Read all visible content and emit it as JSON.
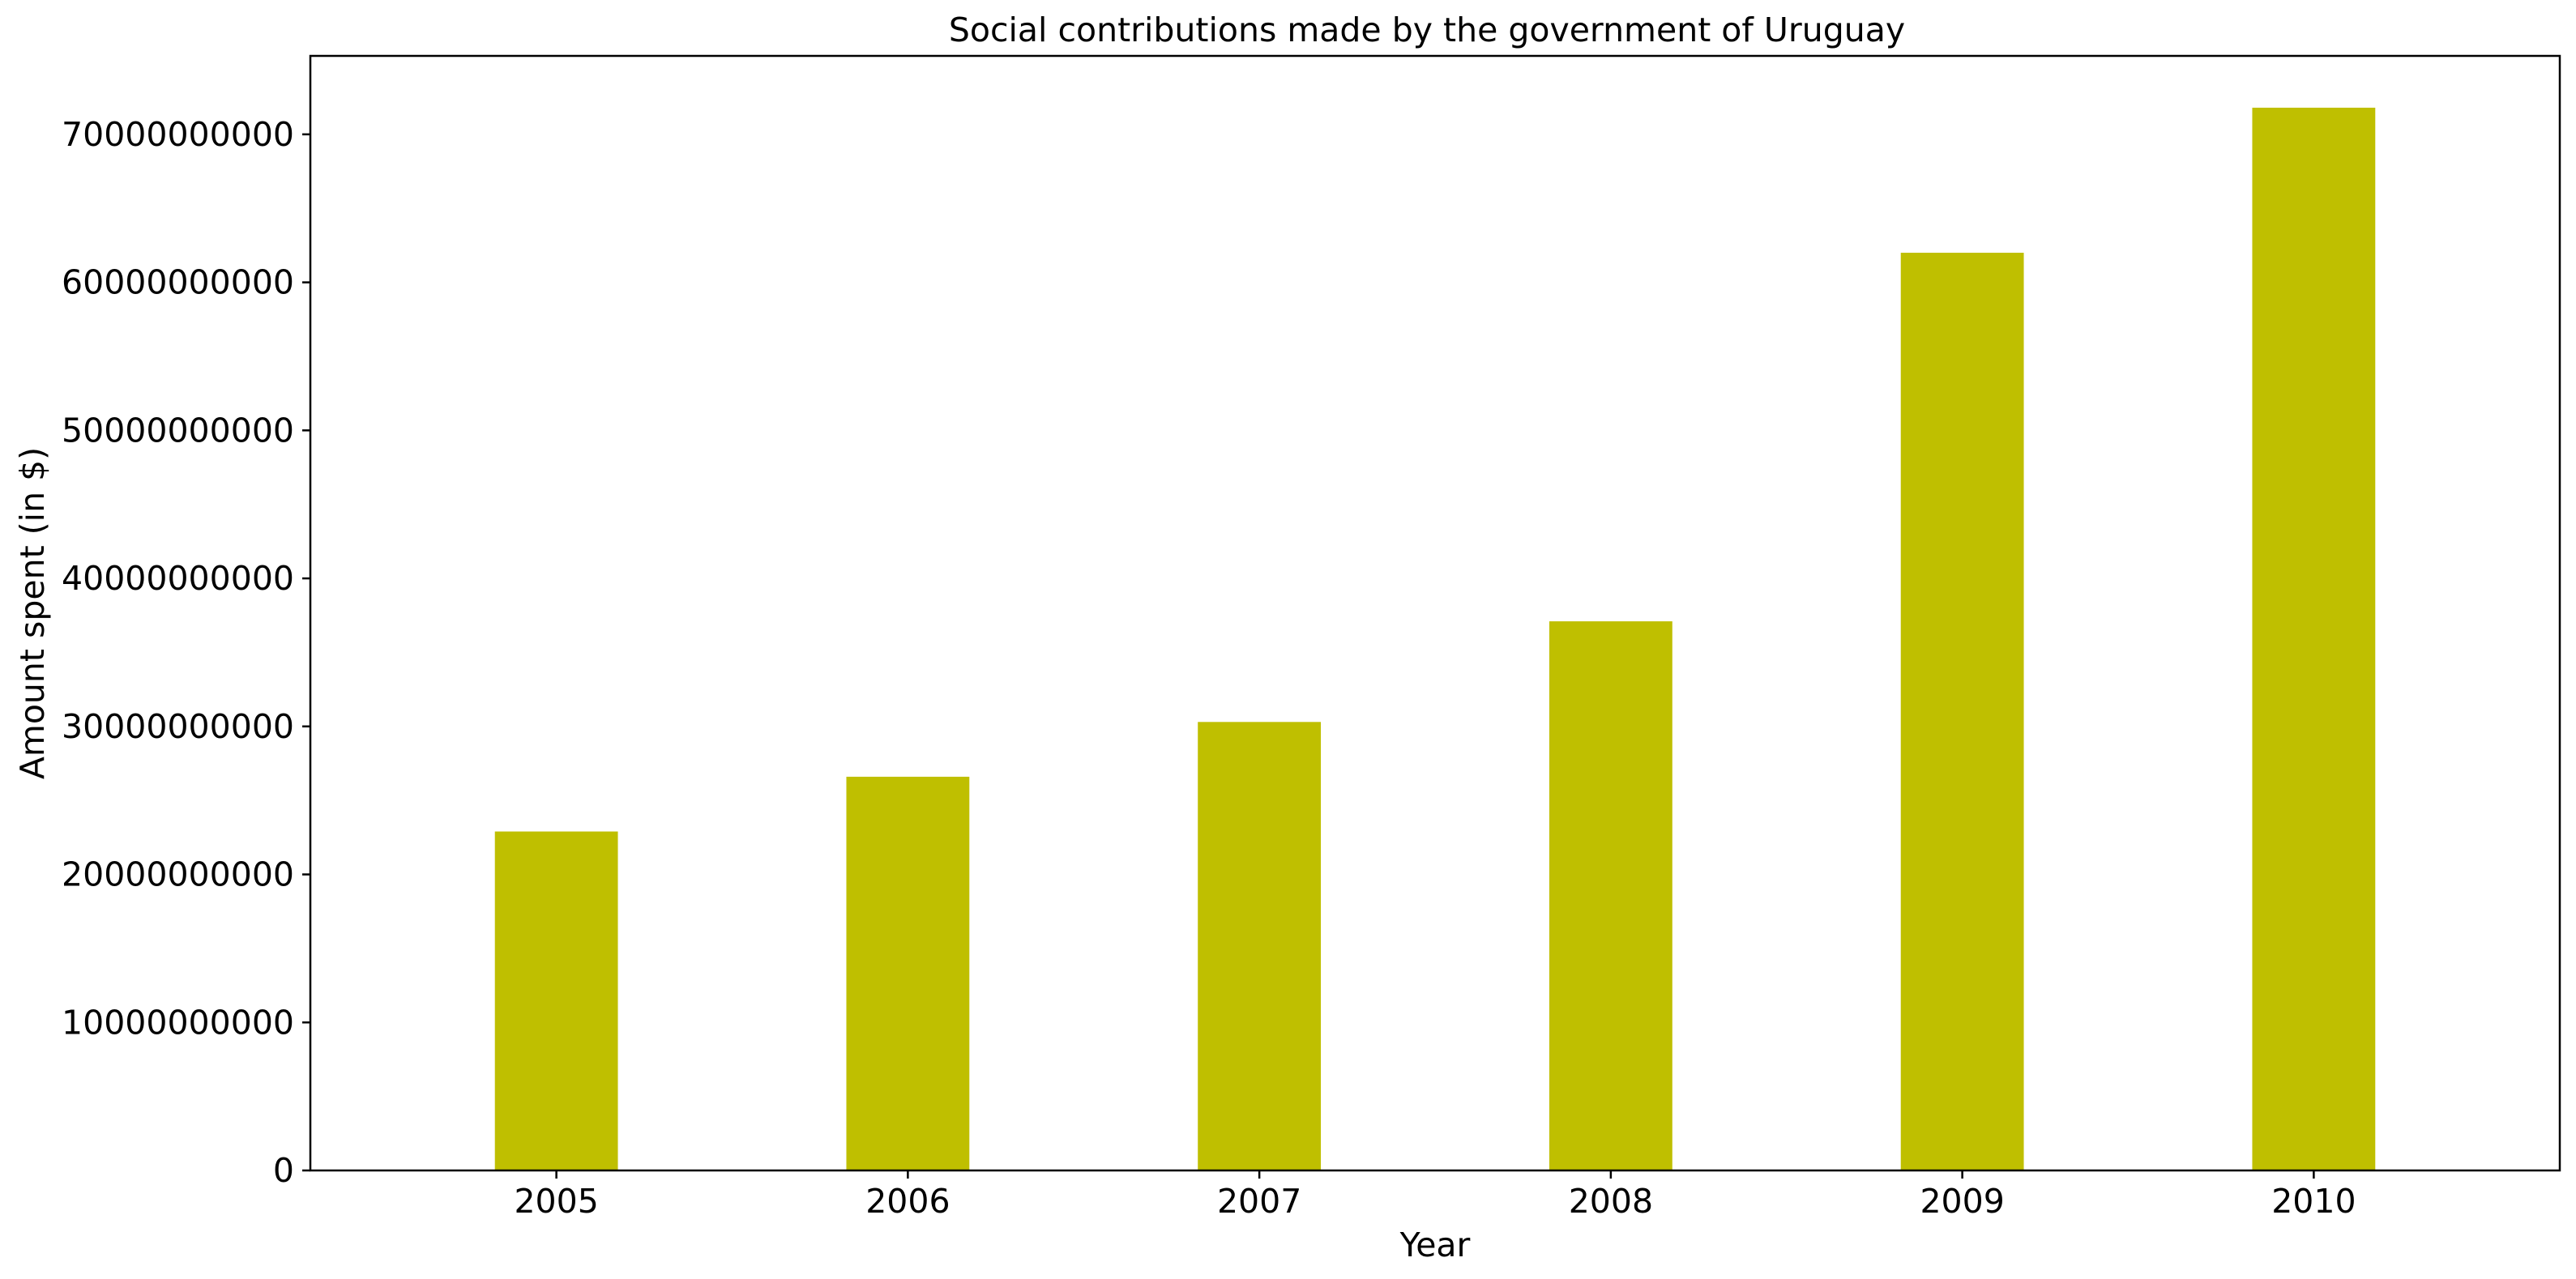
{
  "chart_data": {
    "type": "bar",
    "title": "Social contributions made by the government of Uruguay",
    "xlabel": "Year",
    "ylabel": "Amount spent (in $)",
    "categories": [
      "2005",
      "2006",
      "2007",
      "2008",
      "2009",
      "2010"
    ],
    "values": [
      22900000000,
      26600000000,
      30300000000,
      37100000000,
      62000000000,
      71800000000
    ],
    "ylim": [
      0,
      75300000000
    ],
    "yticks": [
      0,
      10000000000,
      20000000000,
      30000000000,
      40000000000,
      50000000000,
      60000000000,
      70000000000
    ],
    "ytick_labels": [
      "0",
      "10000000000",
      "20000000000",
      "30000000000",
      "40000000000",
      "50000000000",
      "60000000000",
      "70000000000"
    ],
    "bar_color": "#bfbf00",
    "grid": false,
    "legend": "none"
  }
}
